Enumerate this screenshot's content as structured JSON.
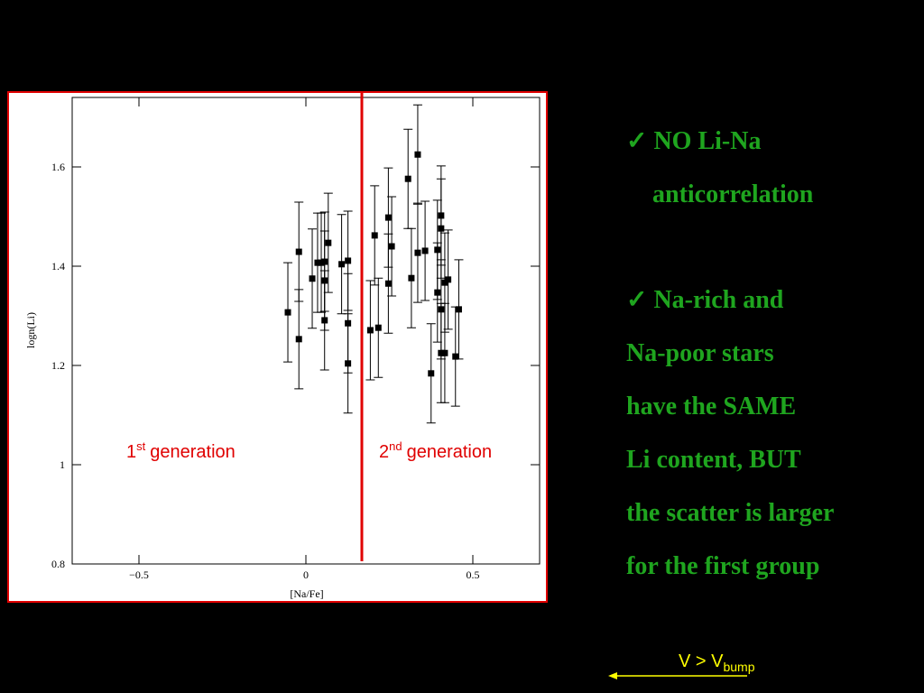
{
  "chart_data": {
    "type": "scatter",
    "x_label": "[Na/Fe]",
    "y_label": "logn(Li)",
    "x": [
      -0.054,
      -0.021,
      -0.021,
      0.019,
      0.035,
      0.046,
      0.056,
      0.056,
      0.056,
      0.067,
      0.107,
      0.126,
      0.126,
      0.126,
      0.193,
      0.206,
      0.217,
      0.247,
      0.247,
      0.257,
      0.306,
      0.316,
      0.335,
      0.335,
      0.357,
      0.375,
      0.394,
      0.394,
      0.405,
      0.405,
      0.405,
      0.405,
      0.416,
      0.416,
      0.426,
      0.448,
      0.458
    ],
    "values": [
      1.307,
      1.429,
      1.253,
      1.375,
      1.407,
      1.407,
      1.409,
      1.371,
      1.291,
      1.447,
      1.404,
      1.411,
      1.285,
      1.204,
      1.271,
      1.462,
      1.276,
      1.498,
      1.365,
      1.44,
      1.576,
      1.376,
      1.625,
      1.427,
      1.431,
      1.184,
      1.433,
      1.347,
      1.502,
      1.476,
      1.313,
      1.225,
      1.367,
      1.225,
      1.373,
      1.218,
      1.313
    ],
    "errors": [
      0.1,
      0.1,
      0.1,
      0.1,
      0.1,
      0.1,
      0.1,
      0.1,
      0.1,
      0.1,
      0.1,
      0.1,
      0.1,
      0.1,
      0.1,
      0.1,
      0.1,
      0.1,
      0.1,
      0.1,
      0.1,
      0.1,
      0.1,
      0.1,
      0.1,
      0.1,
      0.1,
      0.1,
      0.1,
      0.1,
      0.1,
      0.1,
      0.1,
      0.1,
      0.1,
      0.1,
      0.1
    ],
    "color": "#000000",
    "xlim": [
      -0.7,
      0.7
    ],
    "ylim": [
      0.8,
      1.74
    ],
    "xticks": [
      {
        "value": -0.5,
        "label": "−0.5"
      },
      0,
      0.5
    ],
    "yticks": [
      0.8,
      1,
      1.2,
      1.4,
      1.6
    ],
    "annotations": [
      {
        "number": "1",
        "sup": "st",
        "text": "generation"
      },
      {
        "number": "2",
        "sup": "nd",
        "text": "generation"
      }
    ]
  },
  "notes": [
    "✓ NO Li-Na",
    "anticorrelation",
    "✓ Na-rich and",
    "Na-poor stars",
    "have the SAME",
    "Li content, BUT",
    "the scatter is larger",
    "for the first group"
  ],
  "footer": {
    "text": "V > V",
    "sub": "bump"
  }
}
